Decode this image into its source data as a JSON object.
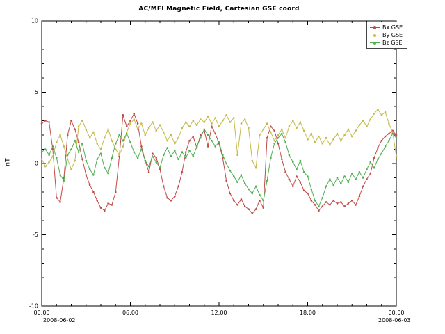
{
  "chart_data": {
    "type": "line",
    "title": "AC/MFI  Magnetic Field, Cartesian GSE coord",
    "xlabel": "",
    "ylabel": "nT",
    "ylim": [
      -10,
      10
    ],
    "xlim_hours": [
      0,
      24
    ],
    "grid": false,
    "legend_position": "top-right",
    "y_ticks": [
      -10,
      -5,
      0,
      5,
      10
    ],
    "x_major_ticks": [
      {
        "hour": 0,
        "label": "00:00"
      },
      {
        "hour": 6,
        "label": "06:00"
      },
      {
        "hour": 12,
        "label": "12:00"
      },
      {
        "hour": 18,
        "label": "18:00"
      },
      {
        "hour": 24,
        "label": "00:00"
      }
    ],
    "x_date_labels": {
      "start": "2008-06-02",
      "end": "2008-06-03"
    },
    "x_sampling": {
      "start_hour": 0,
      "step_hours": 0.25,
      "count": 97
    },
    "series": [
      {
        "name": "Bx GSE",
        "color": "#bf4a45",
        "values": [
          2.8,
          3.0,
          2.9,
          1.0,
          -2.4,
          -2.7,
          -1.0,
          2.0,
          3.0,
          2.4,
          1.5,
          0.3,
          -0.8,
          -1.5,
          -2.0,
          -2.6,
          -3.1,
          -3.3,
          -2.8,
          -2.9,
          -2.0,
          0.5,
          3.4,
          2.6,
          3.0,
          3.5,
          2.8,
          1.2,
          0.2,
          -0.6,
          0.7,
          0.4,
          -0.4,
          -1.6,
          -2.4,
          -2.6,
          -2.3,
          -1.6,
          -0.6,
          0.8,
          1.6,
          1.9,
          1.1,
          2.0,
          2.3,
          1.2,
          2.6,
          2.1,
          1.4,
          0.4,
          -1.2,
          -2.1,
          -2.6,
          -2.9,
          -2.5,
          -3.0,
          -3.2,
          -3.5,
          -3.2,
          -2.6,
          -3.1,
          1.8,
          2.6,
          2.3,
          1.4,
          0.3,
          -0.6,
          -1.1,
          -1.6,
          -0.9,
          -1.3,
          -1.9,
          -2.1,
          -2.6,
          -2.9,
          -3.3,
          -3.0,
          -2.7,
          -2.9,
          -2.6,
          -2.8,
          -2.7,
          -3.0,
          -2.8,
          -2.6,
          -2.9,
          -2.3,
          -1.6,
          -1.1,
          -0.7,
          0.4,
          1.1,
          1.6,
          1.9,
          2.1,
          2.3,
          2.0
        ]
      },
      {
        "name": "By GSE",
        "color": "#c4ba48",
        "values": [
          0.3,
          -0.2,
          0.1,
          0.5,
          1.5,
          2.0,
          1.2,
          0.3,
          -0.4,
          0.2,
          2.6,
          3.0,
          2.4,
          1.8,
          2.2,
          1.4,
          1.0,
          1.8,
          2.4,
          1.6,
          1.0,
          0.6,
          1.2,
          2.2,
          2.8,
          3.1,
          2.4,
          2.8,
          2.0,
          2.5,
          2.9,
          2.3,
          2.7,
          2.2,
          1.6,
          2.0,
          1.4,
          1.8,
          2.5,
          2.9,
          2.6,
          3.0,
          2.7,
          3.1,
          2.9,
          3.3,
          2.8,
          3.2,
          2.6,
          3.0,
          3.4,
          2.9,
          3.2,
          0.6,
          2.8,
          3.1,
          2.5,
          0.2,
          -0.3,
          2.0,
          2.4,
          2.8,
          2.2,
          1.6,
          2.0,
          2.4,
          1.8,
          2.6,
          3.0,
          2.5,
          2.9,
          2.3,
          1.7,
          2.1,
          1.5,
          1.9,
          1.4,
          1.8,
          1.3,
          1.7,
          2.1,
          1.6,
          2.0,
          2.4,
          1.9,
          2.3,
          2.7,
          3.0,
          2.6,
          3.1,
          3.5,
          3.8,
          3.4,
          3.6,
          2.8,
          2.2,
          0.5
        ]
      },
      {
        "name": "Bz GSE",
        "color": "#51ae51",
        "values": [
          0.8,
          1.0,
          0.6,
          1.2,
          0.4,
          -0.8,
          -1.2,
          0.6,
          1.0,
          1.6,
          0.8,
          1.4,
          0.2,
          -0.4,
          -0.8,
          0.3,
          0.7,
          -0.3,
          -0.7,
          0.4,
          1.4,
          2.0,
          1.6,
          2.1,
          1.5,
          0.8,
          0.4,
          1.0,
          0.2,
          -0.2,
          0.5,
          0.1,
          -0.3,
          0.6,
          1.1,
          0.5,
          0.9,
          0.3,
          0.8,
          0.4,
          0.9,
          0.5,
          1.2,
          1.8,
          2.4,
          2.0,
          1.6,
          1.2,
          1.5,
          0.6,
          0.0,
          -0.5,
          -0.9,
          -1.3,
          -0.8,
          -1.4,
          -1.8,
          -2.1,
          -1.6,
          -2.2,
          -2.6,
          -1.2,
          0.4,
          1.4,
          1.8,
          2.1,
          1.5,
          0.6,
          0.1,
          -0.4,
          0.2,
          -0.6,
          -0.9,
          -1.8,
          -2.6,
          -3.0,
          -2.4,
          -1.6,
          -1.1,
          -1.5,
          -1.0,
          -1.4,
          -0.9,
          -1.3,
          -0.7,
          -1.1,
          -0.6,
          -1.0,
          -0.4,
          0.1,
          -0.3,
          0.3,
          0.7,
          1.2,
          1.6,
          2.1,
          1.8
        ]
      }
    ]
  }
}
